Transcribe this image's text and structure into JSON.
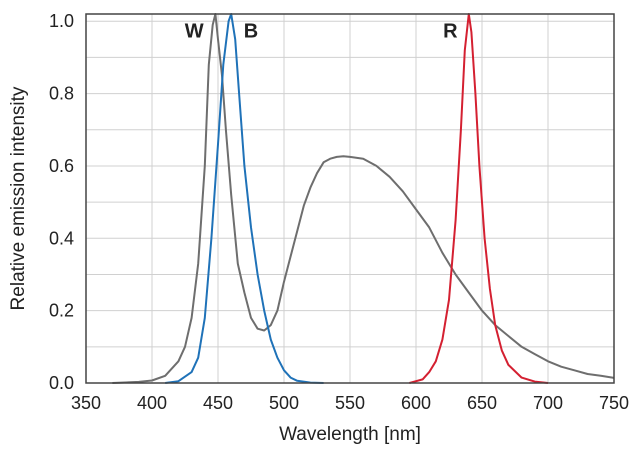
{
  "chart_data": {
    "type": "line",
    "title": "",
    "xlabel": "Wavelength [nm]",
    "ylabel": "Relative emission intensity",
    "xlim": [
      350,
      750
    ],
    "ylim": [
      0,
      1.02
    ],
    "x_ticks": [
      "350",
      "400",
      "450",
      "500",
      "550",
      "600",
      "650",
      "700",
      "750"
    ],
    "y_ticks": [
      "0.0",
      "0.2",
      "0.4",
      "0.6",
      "0.8",
      "1.0"
    ],
    "grid": true,
    "series": [
      {
        "name": "W",
        "color": "#6e6e6e",
        "points": [
          [
            370,
            0.0
          ],
          [
            390,
            0.003
          ],
          [
            400,
            0.007
          ],
          [
            410,
            0.02
          ],
          [
            420,
            0.06
          ],
          [
            425,
            0.1
          ],
          [
            430,
            0.18
          ],
          [
            435,
            0.33
          ],
          [
            440,
            0.6
          ],
          [
            443,
            0.88
          ],
          [
            446,
            0.99
          ],
          [
            448,
            1.02
          ],
          [
            450,
            0.95
          ],
          [
            453,
            0.85
          ],
          [
            456,
            0.7
          ],
          [
            460,
            0.52
          ],
          [
            465,
            0.33
          ],
          [
            470,
            0.25
          ],
          [
            475,
            0.18
          ],
          [
            480,
            0.15
          ],
          [
            485,
            0.145
          ],
          [
            490,
            0.16
          ],
          [
            495,
            0.2
          ],
          [
            500,
            0.28
          ],
          [
            505,
            0.35
          ],
          [
            510,
            0.42
          ],
          [
            515,
            0.49
          ],
          [
            520,
            0.54
          ],
          [
            525,
            0.58
          ],
          [
            530,
            0.61
          ],
          [
            535,
            0.62
          ],
          [
            540,
            0.625
          ],
          [
            545,
            0.627
          ],
          [
            550,
            0.625
          ],
          [
            560,
            0.62
          ],
          [
            570,
            0.6
          ],
          [
            580,
            0.57
          ],
          [
            590,
            0.53
          ],
          [
            600,
            0.48
          ],
          [
            610,
            0.43
          ],
          [
            620,
            0.36
          ],
          [
            630,
            0.3
          ],
          [
            640,
            0.25
          ],
          [
            650,
            0.2
          ],
          [
            660,
            0.16
          ],
          [
            670,
            0.13
          ],
          [
            680,
            0.1
          ],
          [
            690,
            0.08
          ],
          [
            700,
            0.06
          ],
          [
            710,
            0.045
          ],
          [
            720,
            0.035
          ],
          [
            730,
            0.025
          ],
          [
            740,
            0.02
          ],
          [
            750,
            0.014
          ]
        ]
      },
      {
        "name": "B",
        "color": "#1f72b8",
        "points": [
          [
            410,
            0.0
          ],
          [
            420,
            0.005
          ],
          [
            430,
            0.03
          ],
          [
            435,
            0.07
          ],
          [
            440,
            0.18
          ],
          [
            445,
            0.4
          ],
          [
            450,
            0.66
          ],
          [
            454,
            0.88
          ],
          [
            458,
            1.0
          ],
          [
            460,
            1.02
          ],
          [
            463,
            0.95
          ],
          [
            466,
            0.8
          ],
          [
            470,
            0.6
          ],
          [
            475,
            0.43
          ],
          [
            480,
            0.3
          ],
          [
            485,
            0.2
          ],
          [
            490,
            0.12
          ],
          [
            495,
            0.07
          ],
          [
            500,
            0.035
          ],
          [
            505,
            0.015
          ],
          [
            510,
            0.006
          ],
          [
            520,
            0.001
          ],
          [
            530,
            0.0
          ]
        ]
      },
      {
        "name": "R",
        "color": "#d42031",
        "points": [
          [
            595,
            0.0
          ],
          [
            605,
            0.01
          ],
          [
            610,
            0.03
          ],
          [
            615,
            0.06
          ],
          [
            620,
            0.12
          ],
          [
            625,
            0.23
          ],
          [
            630,
            0.45
          ],
          [
            634,
            0.7
          ],
          [
            637,
            0.92
          ],
          [
            640,
            1.02
          ],
          [
            642,
            0.97
          ],
          [
            645,
            0.8
          ],
          [
            648,
            0.6
          ],
          [
            652,
            0.4
          ],
          [
            656,
            0.26
          ],
          [
            660,
            0.16
          ],
          [
            665,
            0.09
          ],
          [
            670,
            0.05
          ],
          [
            680,
            0.015
          ],
          [
            690,
            0.004
          ],
          [
            700,
            0.0
          ]
        ]
      }
    ],
    "annotations": [
      {
        "text": "W",
        "x": 432,
        "y": 0.955
      },
      {
        "text": "B",
        "x": 475,
        "y": 0.955
      },
      {
        "text": "R",
        "x": 626,
        "y": 0.955
      }
    ]
  }
}
